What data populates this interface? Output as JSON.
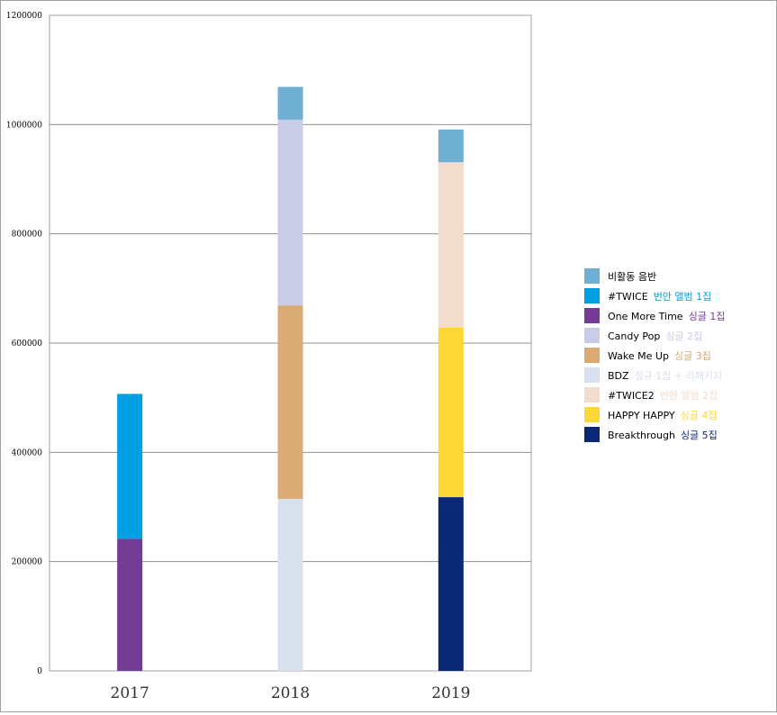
{
  "chart_data": {
    "type": "bar",
    "stacked": true,
    "categories": [
      "2017",
      "2018",
      "2019"
    ],
    "ylim": [
      0,
      1200000
    ],
    "y_ticks": [
      "0",
      "200000",
      "400000",
      "600000",
      "800000",
      "1000000",
      "1200000"
    ],
    "grid": true,
    "legend_position": "right",
    "series": [
      {
        "name": "비활동 음반",
        "tag": "",
        "color": "#6fafd2",
        "tag_color": "#000000",
        "values": [
          0,
          60000,
          60000
        ]
      },
      {
        "name": "#TWICE",
        "tag": "번안 앨범 1집",
        "color": "#009fe3",
        "tag_color": "#009fe3",
        "values": [
          265000,
          0,
          0
        ]
      },
      {
        "name": "One More Time",
        "tag": "싱글 1집",
        "color": "#733b96",
        "tag_color": "#733b96",
        "values": [
          242000,
          0,
          0
        ]
      },
      {
        "name": "Candy Pop",
        "tag": "싱글 2집",
        "color": "#c9cce6",
        "tag_color": "#c9cce6",
        "values": [
          0,
          340000,
          0
        ]
      },
      {
        "name": "Wake Me Up",
        "tag": "싱글 3집",
        "color": "#d9aa72",
        "tag_color": "#d9aa72",
        "values": [
          0,
          354000,
          0
        ]
      },
      {
        "name": "BDZ",
        "tag": "정규 1집 + 리패키지",
        "color": "#d8dfed",
        "tag_color": "#d8dfed",
        "values": [
          0,
          315000,
          0
        ]
      },
      {
        "name": "#TWICE2",
        "tag": "번안 앨범 2집",
        "color": "#f2dccd",
        "tag_color": "#f2dccd",
        "values": [
          0,
          0,
          303000
        ]
      },
      {
        "name": "HAPPY HAPPY",
        "tag": "싱글 4집",
        "color": "#fdd735",
        "tag_color": "#fdd735",
        "values": [
          0,
          0,
          310000
        ]
      },
      {
        "name": "Breakthrough",
        "tag": "싱글 5집",
        "color": "#0b2876",
        "tag_color": "#0b2876",
        "values": [
          0,
          0,
          318000
        ]
      }
    ]
  }
}
